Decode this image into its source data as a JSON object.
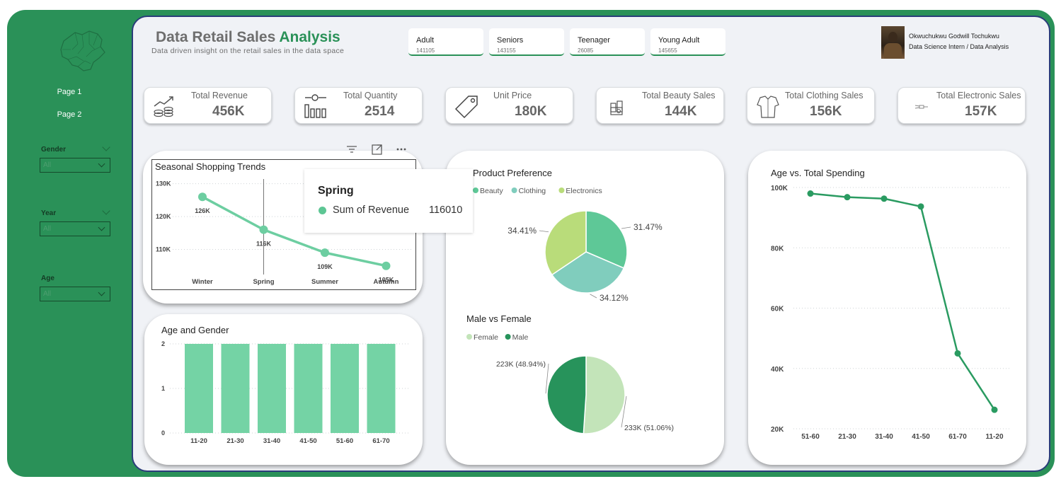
{
  "sidebar": {
    "pages": [
      {
        "label": "Page 1"
      },
      {
        "label": "Page 2"
      }
    ],
    "slicers": [
      {
        "label": "Gender",
        "value": "All"
      },
      {
        "label": "Year",
        "value": "All"
      },
      {
        "label": "Age",
        "value": "All"
      }
    ]
  },
  "header": {
    "title_part1": "Data Retail Sales",
    "title_part2": "Analysis",
    "subtitle": "Data driven insight on the retail sales in the data space"
  },
  "age_groups": [
    {
      "name": "Adult",
      "value": "141105"
    },
    {
      "name": "Seniors",
      "value": "143155"
    },
    {
      "name": "Teenager",
      "value": "26085"
    },
    {
      "name": "Young Adult",
      "value": "145655"
    }
  ],
  "profile": {
    "name": "Okwuchukwu Godwill Tochukwu",
    "role": "Data Science Intern / Data Analysis"
  },
  "kpis": [
    {
      "label": "Total Revenue",
      "value": "456K",
      "icon": "money-growth-icon"
    },
    {
      "label": "Total Quantity",
      "value": "2514",
      "icon": "quantity-chart-icon"
    },
    {
      "label": "Unit Price",
      "value": "180K",
      "icon": "price-tag-icon"
    },
    {
      "label": "Total Beauty Sales",
      "value": "144K",
      "icon": "beauty-products-icon"
    },
    {
      "label": "Total Clothing Sales",
      "value": "156K",
      "icon": "clothing-icon"
    },
    {
      "label": "Total Electronic Sales",
      "value": "157K",
      "icon": "electronics-icon"
    }
  ],
  "colors": {
    "brand_green": "#2a9158",
    "line_green": "#6dcea1",
    "bar_green": "#74d3a5",
    "pie_teal": "#80cdbd",
    "pie_green": "#5ec897",
    "pie_lime": "#b9dc7a",
    "female": "#c3e4b9",
    "male": "#27935b",
    "spending_line": "#2a9b61"
  },
  "tooltip": {
    "title": "Spring",
    "series": "Sum of Revenue",
    "value": "116010"
  },
  "chart_data": [
    {
      "id": "seasonal",
      "type": "line",
      "title": "Seasonal Shopping Trends",
      "categories": [
        "Winter",
        "Spring",
        "Summer",
        "Autumn"
      ],
      "values": [
        126,
        116,
        109,
        105
      ],
      "labels": [
        "126K",
        "116K",
        "109K",
        "105K"
      ],
      "yticks": [
        "110K",
        "120K",
        "130K"
      ],
      "ytick_values": [
        110,
        120,
        130
      ],
      "ylim": [
        103,
        131
      ],
      "highlight": "Spring"
    },
    {
      "id": "age-gender",
      "type": "bar",
      "title": "Age and Gender",
      "categories": [
        "11-20",
        "21-30",
        "31-40",
        "41-50",
        "51-60",
        "61-70"
      ],
      "values": [
        2,
        2,
        2,
        2,
        2,
        2
      ],
      "yticks": [
        "0",
        "1",
        "2"
      ],
      "ytick_values": [
        0,
        1,
        2
      ],
      "ylim": [
        0,
        2
      ]
    },
    {
      "id": "product-pref",
      "type": "pie",
      "title": "Product Preference",
      "legend": [
        "Beauty",
        "Clothing",
        "Electronics"
      ],
      "slices": [
        {
          "name": "Beauty",
          "percent": 31.47,
          "label": "31.47%"
        },
        {
          "name": "Clothing",
          "percent": 34.12,
          "label": "34.12%"
        },
        {
          "name": "Electronics",
          "percent": 34.41,
          "label": "34.41%"
        }
      ]
    },
    {
      "id": "gender",
      "type": "pie",
      "title": "Male vs Female",
      "legend": [
        "Female",
        "Male"
      ],
      "slices": [
        {
          "name": "Female",
          "percent": 51.06,
          "label": "233K (51.06%)"
        },
        {
          "name": "Male",
          "percent": 48.94,
          "label": "223K (48.94%)"
        }
      ]
    },
    {
      "id": "age-spending",
      "type": "line",
      "title": "Age vs. Total Spending",
      "categories": [
        "51-60",
        "21-30",
        "31-40",
        "41-50",
        "61-70",
        "11-20"
      ],
      "values": [
        98,
        96.8,
        96.3,
        93.7,
        45,
        26.3
      ],
      "yticks": [
        "20K",
        "40K",
        "60K",
        "80K",
        "100K"
      ],
      "ytick_values": [
        20,
        40,
        60,
        80,
        100
      ],
      "ylim": [
        20,
        100
      ]
    }
  ]
}
